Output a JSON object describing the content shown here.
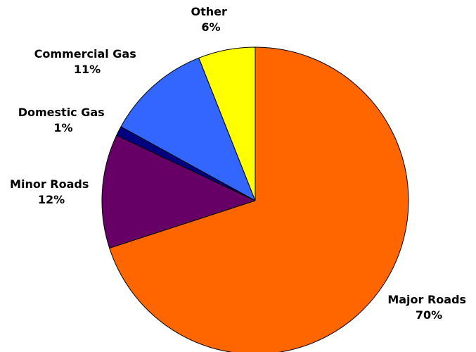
{
  "chart_data": {
    "type": "pie",
    "title": "",
    "slices": [
      {
        "label": "Major Roads",
        "percent_label": "70%",
        "value": 70,
        "color": "#FF6600"
      },
      {
        "label": "Minor Roads",
        "percent_label": "12%",
        "value": 12,
        "color": "#660066"
      },
      {
        "label": "Domestic Gas",
        "percent_label": "1%",
        "value": 1,
        "color": "#000080"
      },
      {
        "label": "Commercial Gas",
        "percent_label": "11%",
        "value": 11,
        "color": "#3366FF"
      },
      {
        "label": "Other",
        "percent_label": "6%",
        "value": 6,
        "color": "#FFFF00"
      }
    ],
    "start_angle_deg": 0,
    "direction": "clockwise",
    "legend": "none",
    "labels": "outside"
  }
}
